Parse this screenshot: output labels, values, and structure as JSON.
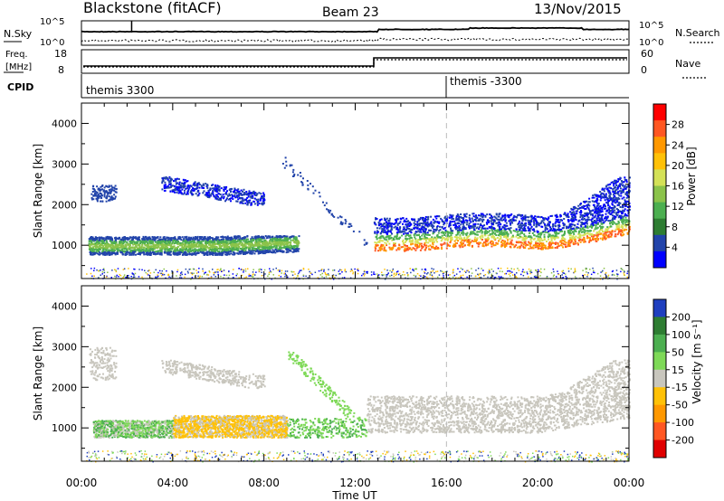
{
  "header": {
    "site": "Blackstone (fitACF)",
    "beam": "Beam 23",
    "date": "13/Nov/2015"
  },
  "noise_panel": {
    "left_label": "N.Sky",
    "left_ticks": [
      "10^5",
      "10^0"
    ],
    "right_ticks": [
      "10^5",
      "10^0"
    ],
    "right_label": "N.Search"
  },
  "freq_panel": {
    "left_label_line1": "Freq.",
    "left_label_line2": "[MHz]",
    "left_ticks": [
      "18",
      "8"
    ],
    "right_ticks": [
      "60",
      "0"
    ],
    "right_label": "Nave"
  },
  "cpid_panel": {
    "label": "CPID",
    "segments": [
      {
        "name": "themis 3300",
        "start_hour": 0
      },
      {
        "name": "themis -3300",
        "start_hour": 16
      }
    ]
  },
  "chart_data": [
    {
      "type": "heatmap",
      "name": "power",
      "ylabel": "Slant Range [km]",
      "yticks": [
        "1000",
        "2000",
        "3000",
        "4000"
      ],
      "ylim": [
        180,
        4500
      ],
      "colorbar_label": "Power [dB]",
      "colorbar_ticks": [
        "4",
        "8",
        "12",
        "16",
        "20",
        "24",
        "28"
      ],
      "colors": [
        "#0000ff",
        "#2244aa",
        "#2e7d32",
        "#4caf50",
        "#8bc34a",
        "#d4e157",
        "#ffc107",
        "#ff9800",
        "#ff5722",
        "#ff0000"
      ],
      "features": [
        {
          "hours": [
            0.3,
            9.5
          ],
          "range_km": [
            800,
            1250
          ],
          "level": "12-18 dB"
        },
        {
          "hours": [
            0.5,
            1.5
          ],
          "range_km": [
            2100,
            2500
          ],
          "level": "4-8 dB"
        },
        {
          "hours": [
            3.5,
            8.0
          ],
          "range_km": [
            2000,
            2700
          ],
          "level": "4-10 dB"
        },
        {
          "hours": [
            9.0,
            12.5
          ],
          "range_km": [
            1100,
            3000
          ],
          "level": "4-8 dB"
        },
        {
          "hours": [
            12.8,
            24.0
          ],
          "range_km": [
            900,
            2500
          ],
          "level": "12-28 dB"
        }
      ]
    },
    {
      "type": "heatmap",
      "name": "velocity",
      "ylabel": "Slant Range [km]",
      "yticks": [
        "1000",
        "2000",
        "3000",
        "4000"
      ],
      "ylim": [
        180,
        4500
      ],
      "colorbar_label": "Velocity [m s⁻¹]",
      "colorbar_ticks": [
        "200",
        "100",
        "50",
        "15",
        "-15",
        "-50",
        "-100",
        "-200"
      ],
      "colors": [
        "#1f3fbf",
        "#2e7d32",
        "#4caf50",
        "#7ed957",
        "#c8c6bd",
        "#ffc107",
        "#ff9800",
        "#ff5722",
        "#e00000"
      ],
      "features": [
        {
          "hours": [
            0.5,
            4.0
          ],
          "range_km": [
            800,
            1200
          ],
          "velocity": "15 to 100"
        },
        {
          "hours": [
            4.0,
            9.0
          ],
          "range_km": [
            800,
            1300
          ],
          "velocity": "-15 to -100"
        },
        {
          "hours": [
            9.0,
            12.5
          ],
          "range_km": [
            800,
            2800
          ],
          "velocity": "15 to 100"
        },
        {
          "hours": [
            12.5,
            24.0
          ],
          "range_km": [
            900,
            2600
          ],
          "velocity": "-15 to 15"
        }
      ]
    }
  ],
  "x_axis": {
    "label": "Time UT",
    "ticks": [
      "00:00",
      "04:00",
      "08:00",
      "12:00",
      "16:00",
      "20:00",
      "00:00"
    ],
    "xlim_hours": [
      0,
      24
    ]
  },
  "scan_gap_marker_hour": 16
}
